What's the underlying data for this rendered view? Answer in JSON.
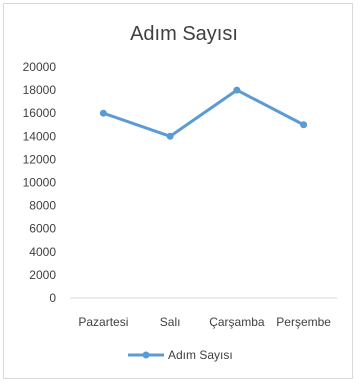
{
  "chart_data": {
    "type": "line",
    "title": "Adım Sayısı",
    "xlabel": "",
    "ylabel": "",
    "categories": [
      "Pazartesi",
      "Salı",
      "Çarşamba",
      "Perşembe"
    ],
    "series": [
      {
        "name": "Adım Sayısı",
        "values": [
          16000,
          14000,
          18000,
          15000
        ]
      }
    ],
    "ylim": [
      0,
      20000
    ],
    "yticks": [
      "0",
      "2000",
      "4000",
      "6000",
      "8000",
      "10000",
      "12000",
      "14000",
      "16000",
      "18000",
      "20000"
    ],
    "grid": false,
    "legend": "bottom",
    "colors": {
      "series": "#5b9bd5",
      "axis": "#d9d9d9",
      "text": "#404040"
    }
  }
}
